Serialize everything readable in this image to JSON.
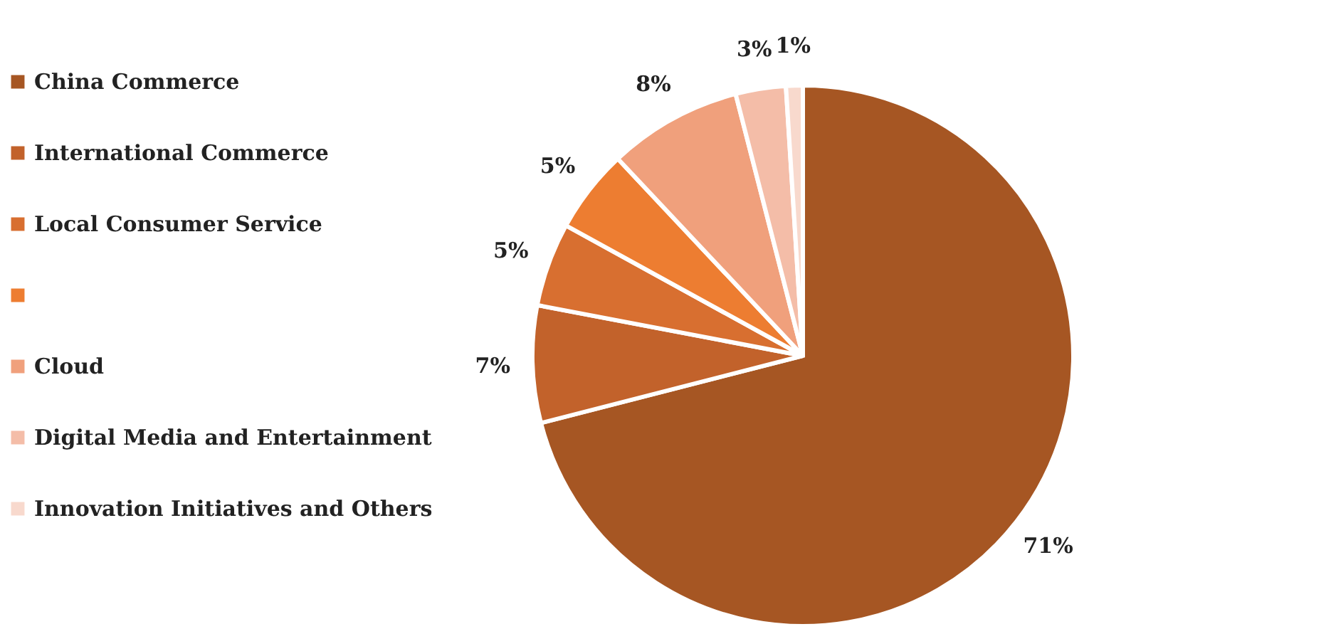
{
  "chart_data": {
    "type": "pie",
    "categories": [
      "China Commerce",
      "International Commerce",
      "Local Consumer Service",
      null,
      "Cloud",
      "Digital Media and Entertainment",
      "Innovation Initiatives and Others"
    ],
    "values": [
      71,
      7,
      5,
      5,
      8,
      3,
      1
    ],
    "colors": [
      "#a65623",
      "#c2622b",
      "#d86f30",
      "#ed7d31",
      "#f0a07c",
      "#f4bda8",
      "#f8d9cd"
    ],
    "value_labels": [
      "71%",
      "7%",
      "5%",
      "5%",
      "8%",
      "3%",
      "1%"
    ],
    "legend": "left"
  }
}
